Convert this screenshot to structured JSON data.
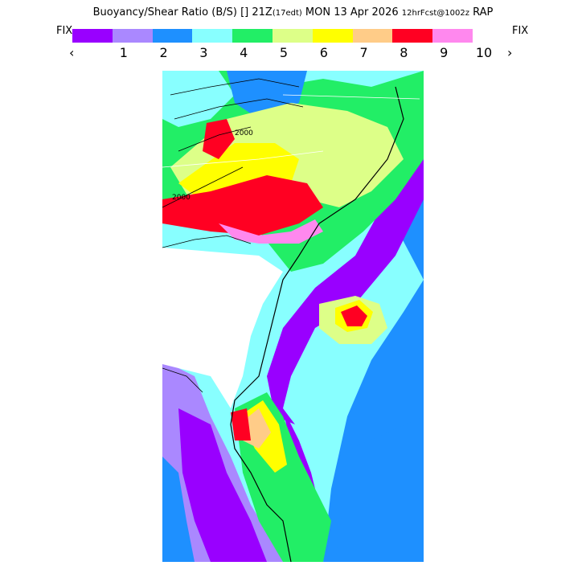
{
  "header": {
    "title": "Buoyancy/Shear Ratio (B/S)",
    "valid": "[] 21Z",
    "valid_local": "(17edt)",
    "date": "MON 13 Apr 2026",
    "forecast": "12hrFcst@1002z",
    "model": "RAP"
  },
  "controls": {
    "fix_left": "FIX",
    "fix_right": "FIX",
    "prev": "‹",
    "next": "›"
  },
  "colorbar": {
    "colors": [
      "#9900ff",
      "#aa88ff",
      "#1e90ff",
      "#88ffff",
      "#22ee66",
      "#ddff88",
      "#ffff00",
      "#ffcc88",
      "#ff0022",
      "#ff88ee"
    ],
    "labels": [
      "1",
      "2",
      "3",
      "4",
      "5",
      "6",
      "7",
      "8",
      "9",
      "10"
    ]
  },
  "map": {
    "contour_labels": [
      "2000",
      "2000"
    ]
  }
}
